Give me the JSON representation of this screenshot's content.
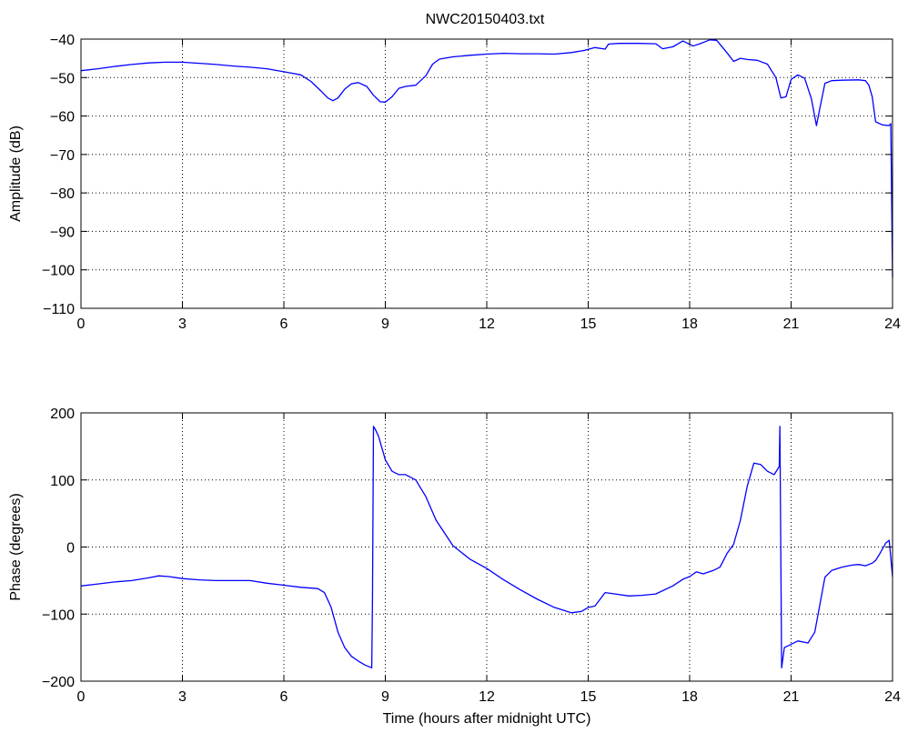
{
  "figure": {
    "title": "NWC20150403.txt"
  },
  "chart_data": [
    {
      "type": "line",
      "title": "NWC20150403.txt",
      "xlabel": "",
      "ylabel": "Amplitude (dB)",
      "xlim": [
        0,
        24
      ],
      "ylim": [
        -110,
        -40
      ],
      "xticks": [
        0,
        3,
        6,
        9,
        12,
        15,
        18,
        21,
        24
      ],
      "xtick_labels": [
        "0",
        "3",
        "6",
        "9",
        "12",
        "15",
        "18",
        "21",
        "24"
      ],
      "yticks": [
        -110,
        -100,
        -90,
        -80,
        -70,
        -60,
        -50,
        -40
      ],
      "ytick_labels": [
        "−110",
        "−100",
        "−90",
        "−80",
        "−70",
        "−60",
        "−50",
        "−40"
      ],
      "grid": true,
      "color": "#0000ff",
      "series": [
        {
          "x": [
            0,
            0.5,
            1,
            1.5,
            2,
            2.5,
            3,
            3.5,
            4,
            4.5,
            5,
            5.5,
            6,
            6.5,
            6.8,
            7.1,
            7.3,
            7.45,
            7.6,
            7.8,
            8,
            8.2,
            8.45,
            8.65,
            8.85,
            9,
            9.2,
            9.4,
            9.6,
            9.9,
            10.2,
            10.4,
            10.6,
            11,
            11.5,
            12,
            12.5,
            13,
            13.5,
            14,
            14.5,
            14.9,
            15.2,
            15.5,
            15.6,
            15.9,
            16.5,
            17,
            17.2,
            17.5,
            17.8,
            18.1,
            18.3,
            18.6,
            18.8,
            19.1,
            19.3,
            19.5,
            19.7,
            20,
            20.3,
            20.55,
            20.7,
            20.85,
            21,
            21.2,
            21.4,
            21.6,
            21.75,
            21.85,
            22,
            22.2,
            22.5,
            23,
            23.2,
            23.3,
            23.4,
            23.5,
            23.7,
            23.9,
            23.95,
            24
          ],
          "y": [
            -48.2,
            -47.7,
            -47.1,
            -46.6,
            -46.2,
            -46,
            -46,
            -46.3,
            -46.6,
            -47,
            -47.3,
            -47.7,
            -48.5,
            -49.3,
            -51,
            -53.5,
            -55.3,
            -56,
            -55.3,
            -53,
            -51.6,
            -51.3,
            -52.3,
            -54.6,
            -56.3,
            -56.4,
            -55,
            -52.8,
            -52.3,
            -52,
            -49.5,
            -46.5,
            -45.2,
            -44.6,
            -44.2,
            -43.9,
            -43.7,
            -43.8,
            -43.8,
            -43.9,
            -43.5,
            -42.9,
            -42.2,
            -42.6,
            -41.3,
            -41.1,
            -41.1,
            -41.2,
            -42.5,
            -42,
            -40.5,
            -41.8,
            -41.2,
            -40.2,
            -40.3,
            -43.5,
            -45.8,
            -45,
            -45.3,
            -45.5,
            -46.5,
            -50,
            -55.3,
            -55,
            -50.5,
            -49.3,
            -50.2,
            -55.5,
            -62.5,
            -58,
            -51.5,
            -50.8,
            -50.7,
            -50.6,
            -50.8,
            -52,
            -55,
            -61.5,
            -62.3,
            -62.5,
            -62,
            -102
          ]
        }
      ]
    },
    {
      "type": "line",
      "title": "",
      "xlabel": "Time (hours after midnight UTC)",
      "ylabel": "Phase (degrees)",
      "xlim": [
        0,
        24
      ],
      "ylim": [
        -200,
        200
      ],
      "xticks": [
        0,
        3,
        6,
        9,
        12,
        15,
        18,
        21,
        24
      ],
      "xtick_labels": [
        "0",
        "3",
        "6",
        "9",
        "12",
        "15",
        "18",
        "21",
        "24"
      ],
      "yticks": [
        -200,
        -100,
        0,
        100,
        200
      ],
      "ytick_labels": [
        "−200",
        "−100",
        "0",
        "100",
        "200"
      ],
      "grid": true,
      "color": "#0000ff",
      "series": [
        {
          "x": [
            0,
            0.5,
            1,
            1.5,
            2,
            2.3,
            2.6,
            3,
            3.5,
            4,
            4.5,
            5,
            5.5,
            6,
            6.5,
            7,
            7.2,
            7.4,
            7.6,
            7.8,
            8,
            8.2,
            8.4,
            8.6,
            8.62,
            8.65,
            8.7,
            8.8,
            9,
            9.2,
            9.4,
            9.6,
            9.9,
            10.2,
            10.5,
            11,
            11.5,
            12,
            12.5,
            13,
            13.5,
            14,
            14.5,
            14.8,
            15,
            15.2,
            15.5,
            15.8,
            16.2,
            16.6,
            17,
            17.5,
            17.8,
            18,
            18.2,
            18.4,
            18.7,
            18.9,
            19.1,
            19.3,
            19.5,
            19.7,
            19.9,
            20.1,
            20.3,
            20.5,
            20.65,
            20.67,
            20.72,
            20.8,
            21,
            21.2,
            21.5,
            21.7,
            21.8,
            22,
            22.2,
            22.5,
            22.8,
            23,
            23.2,
            23.4,
            23.5,
            23.6,
            23.8,
            23.9,
            24
          ],
          "y": [
            -58,
            -55,
            -52,
            -50,
            -46,
            -43,
            -44,
            -47,
            -49,
            -50,
            -50,
            -50,
            -54,
            -57,
            -60,
            -62,
            -68,
            -90,
            -127,
            -150,
            -163,
            -170,
            -176,
            -180,
            -80,
            180,
            176,
            165,
            130,
            113,
            108,
            108,
            100,
            75,
            40,
            2,
            -18,
            -32,
            -49,
            -64,
            -78,
            -90,
            -98,
            -96,
            -90,
            -88,
            -68,
            -70,
            -73,
            -72,
            -70,
            -58,
            -48,
            -44,
            -37,
            -40,
            -35,
            -30,
            -10,
            4,
            40,
            90,
            125,
            123,
            113,
            108,
            120,
            180,
            -180,
            -150,
            -145,
            -140,
            -143,
            -127,
            -100,
            -45,
            -35,
            -30,
            -27,
            -26,
            -28,
            -24,
            -20,
            -12,
            6,
            10,
            -44
          ]
        }
      ]
    }
  ]
}
